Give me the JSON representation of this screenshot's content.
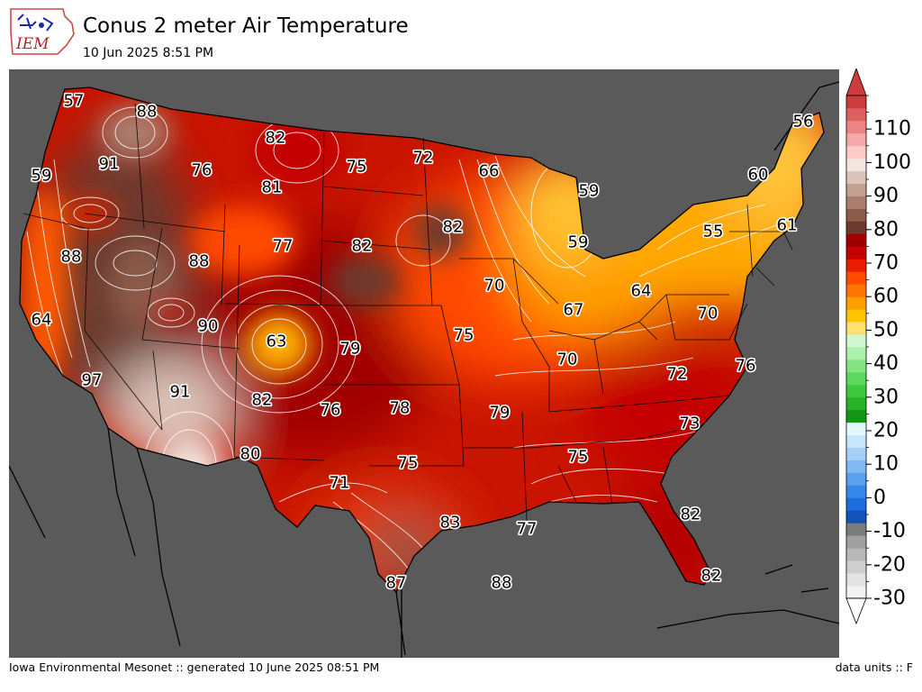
{
  "header": {
    "logo_text": "IEM",
    "title": "Conus 2 meter Air Temperature",
    "subtitle": "10 Jun 2025 8:51 PM"
  },
  "footer": {
    "left": "Iowa Environmental Mesonet :: generated 10 June 2025 08:51 PM",
    "right": "data units :: F"
  },
  "colors": {
    "ocean": "#5a5a5a",
    "outline": "#000000",
    "contour": "#ffffff"
  },
  "map": {
    "region": "Continental United States",
    "variable": "2 meter air temperature",
    "units": "F",
    "station_values": [
      {
        "value": "57"
      },
      {
        "value": "88"
      },
      {
        "value": "82"
      },
      {
        "value": "75"
      },
      {
        "value": "72"
      },
      {
        "value": "66"
      },
      {
        "value": "56"
      },
      {
        "value": "59"
      },
      {
        "value": "91"
      },
      {
        "value": "76"
      },
      {
        "value": "81"
      },
      {
        "value": "59"
      },
      {
        "value": "60"
      },
      {
        "value": "82"
      },
      {
        "value": "55"
      },
      {
        "value": "61"
      },
      {
        "value": "88"
      },
      {
        "value": "77"
      },
      {
        "value": "82"
      },
      {
        "value": "59"
      },
      {
        "value": "88"
      },
      {
        "value": "70"
      },
      {
        "value": "64"
      },
      {
        "value": "64"
      },
      {
        "value": "90"
      },
      {
        "value": "67"
      },
      {
        "value": "70"
      },
      {
        "value": "63"
      },
      {
        "value": "79"
      },
      {
        "value": "75"
      },
      {
        "value": "70"
      },
      {
        "value": "76"
      },
      {
        "value": "97"
      },
      {
        "value": "91"
      },
      {
        "value": "72"
      },
      {
        "value": "82"
      },
      {
        "value": "76"
      },
      {
        "value": "78"
      },
      {
        "value": "79"
      },
      {
        "value": "73"
      },
      {
        "value": "80"
      },
      {
        "value": "75"
      },
      {
        "value": "75"
      },
      {
        "value": "71"
      },
      {
        "value": "82"
      },
      {
        "value": "83"
      },
      {
        "value": "77"
      },
      {
        "value": "87"
      },
      {
        "value": "88"
      },
      {
        "value": "82"
      }
    ]
  },
  "colorbar": {
    "min": -30,
    "max": 120,
    "step": 5,
    "extend": "both",
    "tick_labels": [
      "-30",
      "-20",
      "-10",
      "0",
      "10",
      "20",
      "30",
      "40",
      "50",
      "60",
      "70",
      "80",
      "90",
      "100",
      "110"
    ],
    "colors": [
      "#f2f2f2",
      "#e3e3e3",
      "#cecece",
      "#b8b8b8",
      "#a0a0a0",
      "#7c7c7c",
      "#1352b8",
      "#1a6fdd",
      "#3588e8",
      "#5aa0ee",
      "#80b8f2",
      "#a6d0f6",
      "#c8e6fa",
      "#e6f8ff",
      "#149614",
      "#26b426",
      "#3ec83e",
      "#5cd85c",
      "#84e484",
      "#acf0ac",
      "#d2f8d2",
      "#ffe070",
      "#ffc400",
      "#ff9e00",
      "#ff7400",
      "#ff4a00",
      "#e81c00",
      "#c40000",
      "#a00000",
      "#6a3a2e",
      "#8a5a4a",
      "#aa7e6e",
      "#c4a092",
      "#dcc4ba",
      "#f2e6e0",
      "#ffcaca",
      "#f7a8a8",
      "#ec8484",
      "#de6060",
      "#cc3c3c"
    ]
  }
}
